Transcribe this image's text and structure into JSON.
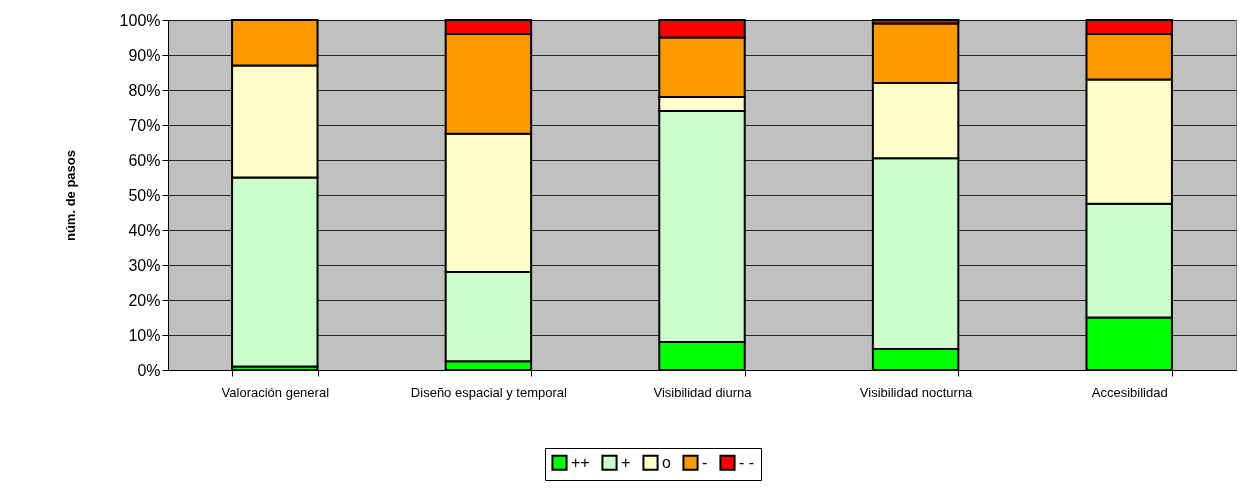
{
  "chart_data": {
    "type": "bar",
    "ylabel": "núm. de pasos",
    "stacked": true,
    "categories": [
      "Valoración general",
      "Diseño espacial y temporal",
      "Visibilidad diurna",
      "Visibilidad nocturna",
      "Accesibilidad"
    ],
    "series": [
      {
        "name": "++",
        "color": "#00ff00",
        "values": [
          1,
          2.5,
          8,
          6,
          15
        ]
      },
      {
        "name": "+",
        "color": "#ccffcc",
        "values": [
          54,
          25.5,
          66,
          54.5,
          32.5
        ]
      },
      {
        "name": "o",
        "color": "#ffffcc",
        "values": [
          32,
          39.5,
          4,
          21.5,
          35.5
        ]
      },
      {
        "name": "-",
        "color": "#ff9900",
        "values": [
          13,
          28.5,
          17,
          17,
          13
        ]
      },
      {
        "name": "- -",
        "color": "#ff0000",
        "values": [
          0,
          4,
          5,
          1,
          4
        ]
      }
    ],
    "ylim": [
      0,
      100
    ],
    "yticks": [
      {
        "value": 0,
        "label": "0%"
      },
      {
        "value": 10,
        "label": "10%"
      },
      {
        "value": 20,
        "label": "20%"
      },
      {
        "value": 30,
        "label": "30%"
      },
      {
        "value": 40,
        "label": "40%"
      },
      {
        "value": 50,
        "label": "50%"
      },
      {
        "value": 60,
        "label": "60%"
      },
      {
        "value": 70,
        "label": "70%"
      },
      {
        "value": 80,
        "label": "80%"
      },
      {
        "value": 90,
        "label": "90%"
      },
      {
        "value": 100,
        "label": "100%"
      }
    ],
    "grid": "y",
    "legend": "bottom"
  }
}
